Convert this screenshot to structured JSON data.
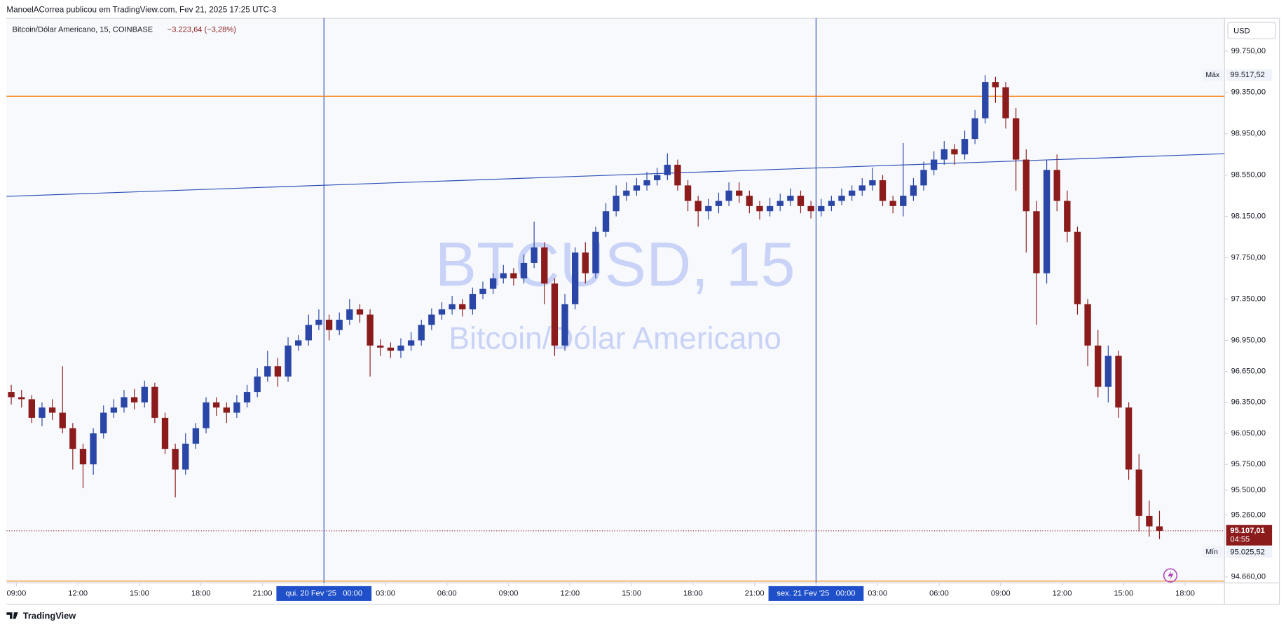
{
  "chart_data": {
    "type": "candlestick",
    "header": "ManoelACorrea publicou em TradingView.com, Fev 21, 2025 17:25 UTC-3",
    "symbol_title": "Bitcoin/Dólar Americano, 15, COINBASE",
    "change": "−3.223,64 (−3,28%)",
    "watermark_symbol": "BTCUSD, 15",
    "watermark_name": "Bitcoin/Dólar Americano",
    "currency": "USD",
    "brand": "TradingView",
    "up_color": "#2a46a6",
    "down_color": "#8c1c1c",
    "x": [
      8.5,
      9,
      9.5,
      10,
      10.5,
      11,
      11.5,
      12,
      12.5,
      13,
      13.5,
      14,
      14.5,
      15,
      15.5,
      16,
      16.5,
      17,
      17.5,
      18,
      18.5,
      19,
      19.5,
      20,
      20.5,
      21,
      21.5,
      22,
      22.5,
      23,
      23.5,
      24,
      24.5,
      25,
      25.5,
      26,
      26.5,
      27,
      27.5,
      28,
      28.5,
      29,
      29.5,
      30,
      30.5,
      31,
      31.5,
      32,
      32.5,
      33,
      33.5,
      34,
      34.5,
      35,
      35.5,
      36,
      36.5,
      37,
      37.5,
      38,
      38.5,
      39,
      39.5,
      40,
      40.5,
      41,
      41.5,
      42,
      42.5,
      43,
      43.5,
      44,
      44.5,
      45,
      45.5,
      46,
      46.5,
      47,
      47.5,
      48,
      48.5,
      49,
      49.5,
      50,
      50.5,
      51,
      51.5,
      52,
      52.5,
      53,
      53.5,
      54,
      54.5,
      55,
      55.5,
      56,
      56.5,
      57,
      57.5,
      58,
      58.5,
      59,
      59.5,
      60,
      60.5,
      61,
      61.5,
      62,
      62.5,
      63,
      63.5,
      64,
      64.5
    ],
    "open": [
      96450,
      96400,
      96380,
      96200,
      96300,
      96250,
      96100,
      95900,
      95750,
      96050,
      96250,
      96300,
      96400,
      96350,
      96500,
      96200,
      95900,
      95700,
      95950,
      96100,
      96350,
      96300,
      96250,
      96350,
      96450,
      96600,
      96700,
      96600,
      96900,
      96950,
      97100,
      97150,
      97050,
      97150,
      97250,
      97200,
      96900,
      96880,
      96850,
      96900,
      96950,
      97100,
      97200,
      97250,
      97300,
      97250,
      97400,
      97450,
      97550,
      97600,
      97550,
      97700,
      97850,
      97500,
      96900,
      97300,
      97800,
      97600,
      98000,
      98200,
      98350,
      98400,
      98450,
      98500,
      98550,
      98650,
      98450,
      98300,
      98200,
      98250,
      98300,
      98400,
      98350,
      98250,
      98200,
      98250,
      98300,
      98350,
      98250,
      98200,
      98250,
      98300,
      98350,
      98400,
      98450,
      98500,
      98300,
      98250,
      98350,
      98450,
      98600,
      98700,
      98800,
      98750,
      98900,
      99100,
      99450,
      99400,
      99100,
      98700,
      98200,
      97600,
      98600,
      98300,
      98000,
      97300,
      96900,
      96500,
      96800,
      96300,
      95700,
      95250,
      95150
    ],
    "high": [
      96520,
      96470,
      96420,
      96350,
      96380,
      96700,
      96150,
      95950,
      96100,
      96320,
      96380,
      96470,
      96480,
      96560,
      96540,
      96250,
      95950,
      96050,
      96150,
      96400,
      96400,
      96350,
      96420,
      96520,
      96680,
      96850,
      96780,
      96980,
      97000,
      97200,
      97250,
      97200,
      97220,
      97350,
      97300,
      97250,
      96960,
      96930,
      96970,
      97030,
      97150,
      97260,
      97320,
      97380,
      97350,
      97460,
      97520,
      97600,
      97680,
      97650,
      97780,
      98100,
      97900,
      97550,
      97400,
      97850,
      97900,
      98050,
      98280,
      98450,
      98480,
      98520,
      98580,
      98620,
      98760,
      98700,
      98500,
      98350,
      98320,
      98380,
      98480,
      98480,
      98400,
      98300,
      98330,
      98370,
      98420,
      98400,
      98300,
      98320,
      98350,
      98420,
      98450,
      98520,
      98620,
      98550,
      98350,
      98860,
      98520,
      98680,
      98780,
      98880,
      98850,
      98980,
      99180,
      99517.52,
      99500,
      99450,
      99200,
      98800,
      98300,
      98700,
      98750,
      98400,
      98050,
      97350,
      97050,
      96900,
      96850,
      96350,
      95850,
      95400,
      95300
    ],
    "low": [
      96330,
      96300,
      96150,
      96120,
      96180,
      96050,
      95700,
      95520,
      95650,
      96000,
      96200,
      96250,
      96280,
      96300,
      96150,
      95850,
      95430,
      95650,
      95900,
      96050,
      96220,
      96150,
      96200,
      96300,
      96400,
      96550,
      96500,
      96550,
      96850,
      96900,
      97050,
      96950,
      97000,
      97100,
      97120,
      96600,
      96800,
      96780,
      96780,
      96850,
      96900,
      97050,
      97150,
      97200,
      97180,
      97200,
      97350,
      97400,
      97500,
      97480,
      97500,
      97650,
      97300,
      96800,
      96850,
      97250,
      97500,
      97550,
      97950,
      98150,
      98300,
      98350,
      98400,
      98450,
      98500,
      98400,
      98200,
      98050,
      98120,
      98180,
      98250,
      98280,
      98180,
      98120,
      98150,
      98200,
      98250,
      98180,
      98130,
      98150,
      98200,
      98260,
      98300,
      98350,
      98400,
      98250,
      98180,
      98150,
      98300,
      98400,
      98550,
      98650,
      98650,
      98700,
      98850,
      99050,
      99250,
      99000,
      98400,
      97800,
      97100,
      97500,
      98200,
      97900,
      97200,
      96700,
      96400,
      96350,
      96200,
      95600,
      95100,
      95050,
      95025.52
    ],
    "close": [
      96400,
      96380,
      96200,
      96300,
      96250,
      96100,
      95900,
      95750,
      96050,
      96250,
      96300,
      96400,
      96350,
      96500,
      96200,
      95900,
      95700,
      95950,
      96100,
      96350,
      96300,
      96250,
      96350,
      96450,
      96600,
      96700,
      96600,
      96900,
      96950,
      97100,
      97150,
      97050,
      97150,
      97250,
      97200,
      96900,
      96880,
      96850,
      96900,
      96950,
      97100,
      97200,
      97250,
      97300,
      97250,
      97400,
      97450,
      97550,
      97600,
      97550,
      97700,
      97850,
      97500,
      96900,
      97300,
      97800,
      97600,
      98000,
      98200,
      98350,
      98400,
      98450,
      98500,
      98550,
      98650,
      98450,
      98300,
      98200,
      98250,
      98300,
      98400,
      98350,
      98250,
      98200,
      98250,
      98300,
      98350,
      98250,
      98200,
      98250,
      98300,
      98350,
      98400,
      98450,
      98500,
      98300,
      98250,
      98350,
      98450,
      98600,
      98700,
      98800,
      98750,
      98900,
      99100,
      99450,
      99400,
      99100,
      98700,
      98200,
      97600,
      98600,
      98300,
      98000,
      97300,
      96900,
      96500,
      96800,
      96300,
      95700,
      95250,
      95150,
      95107.01
    ],
    "xlim": [
      8.52,
      67.92
    ],
    "ylim": [
      94603,
      100068
    ],
    "yticks": [
      {
        "value": 99750,
        "label": "99.750,00"
      },
      {
        "value": 99350,
        "label": "99.350,00"
      },
      {
        "value": 98950,
        "label": "98.950,00"
      },
      {
        "value": 98550,
        "label": "98.550,00"
      },
      {
        "value": 98150,
        "label": "98.150,00"
      },
      {
        "value": 97750,
        "label": "97.750,00"
      },
      {
        "value": 97350,
        "label": "97.350,00"
      },
      {
        "value": 96950,
        "label": "96.950,00"
      },
      {
        "value": 96650,
        "label": "96.650,00"
      },
      {
        "value": 96350,
        "label": "96.350,00"
      },
      {
        "value": 96050,
        "label": "96.050,00"
      },
      {
        "value": 95750,
        "label": "95.750,00"
      },
      {
        "value": 95500,
        "label": "95.500,00"
      },
      {
        "value": 95260,
        "label": "95.260,00"
      },
      {
        "value": 94660,
        "label": "94.660,00"
      }
    ],
    "xticks": [
      {
        "value": 9,
        "label": "09:00"
      },
      {
        "value": 12,
        "label": "12:00"
      },
      {
        "value": 15,
        "label": "15:00"
      },
      {
        "value": 18,
        "label": "18:00"
      },
      {
        "value": 21,
        "label": "21:00"
      },
      {
        "value": 24,
        "label": "qui. 20 Fev '25   00:00"
      },
      {
        "value": 27,
        "label": "03:00"
      },
      {
        "value": 30,
        "label": "06:00"
      },
      {
        "value": 33,
        "label": "09:00"
      },
      {
        "value": 36,
        "label": "12:00"
      },
      {
        "value": 39,
        "label": "15:00"
      },
      {
        "value": 42,
        "label": "18:00"
      },
      {
        "value": 45,
        "label": "21:00"
      },
      {
        "value": 48,
        "label": "sex. 21 Fev '25   00:00"
      },
      {
        "value": 51,
        "label": "03:00"
      },
      {
        "value": 54,
        "label": "06:00"
      },
      {
        "value": 57,
        "label": "09:00"
      },
      {
        "value": 60,
        "label": "12:00"
      },
      {
        "value": 63,
        "label": "15:00"
      },
      {
        "value": 66,
        "label": "18:00"
      }
    ],
    "grid": false,
    "max_marker": {
      "value": 99517.52,
      "label": "99.517,52",
      "tag": "Máx"
    },
    "min_marker": {
      "value": 95025.52,
      "label": "95.025,52",
      "tag": "Mín"
    },
    "last_price": {
      "value": 95107.01,
      "label": "95.107,01",
      "countdown": "04:55"
    },
    "hlines": [
      99313,
      94620
    ],
    "hline_color": "#f57c00",
    "vlines": [
      24,
      48
    ],
    "trendline": {
      "x": [
        8.52,
        67.92
      ],
      "y": [
        98344,
        98757
      ]
    },
    "drawing_color": "#2c4fb8"
  }
}
